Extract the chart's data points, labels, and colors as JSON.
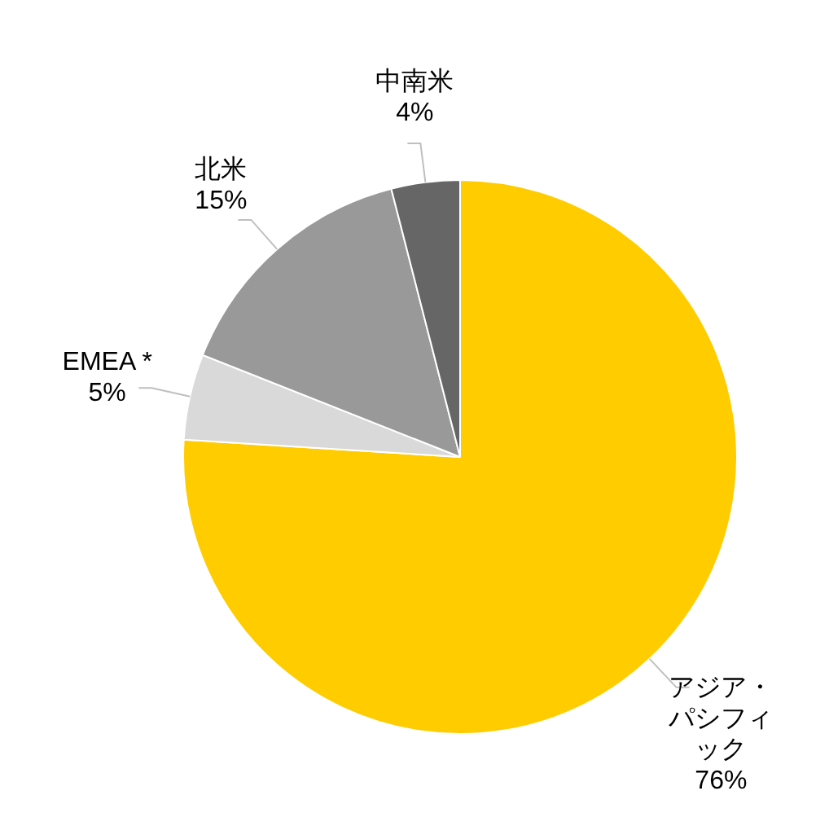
{
  "chart_data": {
    "type": "pie",
    "categories": [
      "アジア・パシフィック",
      "EMEA *",
      "北米",
      "中南米"
    ],
    "values": [
      76,
      5,
      15,
      4
    ],
    "colors": [
      "#ffcc00",
      "#d9d9d9",
      "#999999",
      "#666666"
    ],
    "value_labels": [
      "76%",
      "5%",
      "15%",
      "4%"
    ],
    "legend": false
  }
}
